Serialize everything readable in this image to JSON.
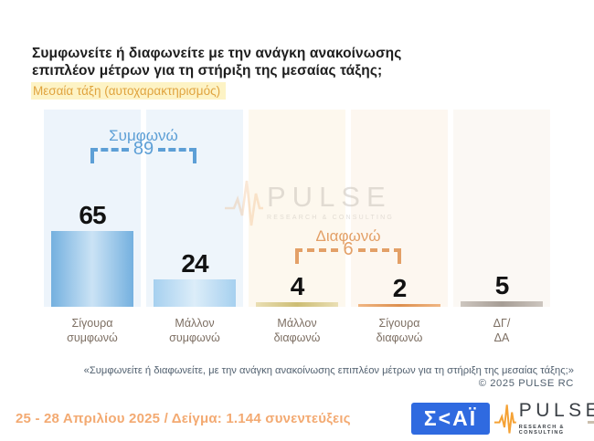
{
  "header": {
    "title_line1": "Συμφωνείτε ή διαφωνείτε με την ανάγκη ανακοίνωσης",
    "title_line2": "επιπλέον μέτρων για τη στήριξη της μεσαίας τάξης;",
    "subtitle": "Μεσαία τάξη (αυτοχαρακτηρισμός)"
  },
  "chart_data": {
    "type": "bar",
    "title": "Συμφωνείτε ή διαφωνείτε με την ανάγκη ανακοίνωσης επιπλέον μέτρων για τη στήριξη της μεσαίας τάξης;",
    "subtitle": "Μεσαία τάξη (αυτοχαρακτηρισμός)",
    "unit": "percent",
    "ylim": [
      0,
      100
    ],
    "grid": false,
    "categories": [
      "Σίγουρα\nσυμφωνώ",
      "Μάλλον\nσυμφωνώ",
      "Μάλλον\nδιαφωνώ",
      "Σίγουρα\nδιαφωνώ",
      "ΔΓ/\nΔΑ"
    ],
    "values": [
      65,
      24,
      4,
      2,
      5
    ],
    "bars": [
      {
        "category": "Σίγουρα\nσυμφωνώ",
        "value": 65,
        "bar_color_edge": "#74b0df",
        "bar_color_mid": "#cbe3f5",
        "column_bg": "#edf4fb"
      },
      {
        "category": "Μάλλον\nσυμφωνώ",
        "value": 24,
        "bar_color_edge": "#a6d0ef",
        "bar_color_mid": "#dcedf9",
        "column_bg": "#eef5fb"
      },
      {
        "category": "Μάλλον\nδιαφωνώ",
        "value": 4,
        "bar_color_edge": "#eadfb4",
        "bar_color_mid": "#cdbd74",
        "column_bg": "#fdf8ee"
      },
      {
        "category": "Σίγουρα\nδιαφωνώ",
        "value": 2,
        "bar_color_edge": "#f0b683",
        "bar_color_mid": "#dd8f4e",
        "column_bg": "#fdf7f0"
      },
      {
        "category": "ΔΓ/\nΔΑ",
        "value": 5,
        "bar_color_edge": "#cdc6bf",
        "bar_color_mid": "#a69d95",
        "column_bg": "#fbf8f4"
      }
    ],
    "brackets": [
      {
        "label": "Συμφωνώ",
        "value": 89,
        "color": "#5d9fd6",
        "from_bar": 0,
        "to_bar": 1
      },
      {
        "label": "Διαφωνώ",
        "value": 6,
        "color": "#e3a067",
        "from_bar": 2,
        "to_bar": 3
      }
    ],
    "legend_position": "none"
  },
  "watermark": {
    "name": "PULSE",
    "tagline": "RESEARCH & CONSULTING"
  },
  "footnote": {
    "quote": "«Συμφωνείτε ή διαφωνείτε, με την ανάγκη ανακοίνωσης επιπλέον μέτρων για τη στήριξη της μεσαίας τάξης;»",
    "copyright": "©  2025  PULSE RC"
  },
  "footer": {
    "fieldwork": "25 - 28 Απριλίου 2025  /  Δείγμα:  1.144 συνεντεύξεις",
    "skai_text": "Σ<ΑΪ",
    "pulse_name": "PULSE",
    "pulse_tagline": "RESEARCH & CONSULTING"
  },
  "colors": {
    "agree_accent": "#5d9fd6",
    "disagree_accent": "#e3a067",
    "subtitle_highlight_bg": "#fdf3c5",
    "subtitle_text": "#e0a33e",
    "category_text": "#7d6f63",
    "footnote_text": "#51606f",
    "fieldwork_text": "#f3aa72",
    "skai_blue": "#2f6ae0",
    "pulse_orange": "#f5a235",
    "pulse_dark": "#3b4046"
  }
}
